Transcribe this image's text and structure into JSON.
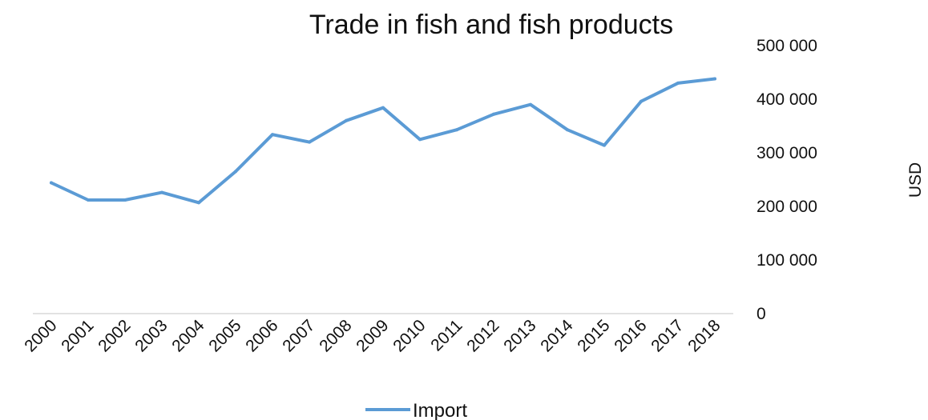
{
  "chart_data": {
    "type": "line",
    "title": "Trade in fish and fish products",
    "xlabel": "",
    "ylabel": "USD",
    "categories": [
      "2000",
      "2001",
      "2002",
      "2003",
      "2004",
      "2005",
      "2006",
      "2007",
      "2008",
      "2009",
      "2010",
      "2011",
      "2012",
      "2013",
      "2014",
      "2015",
      "2016",
      "2017",
      "2018"
    ],
    "series": [
      {
        "name": "Import",
        "color": "#5b9bd5",
        "values": [
          244000,
          212000,
          212000,
          226000,
          207000,
          265000,
          334000,
          320000,
          360000,
          384000,
          325000,
          343000,
          372000,
          390000,
          343000,
          314000,
          396000,
          430000,
          438000
        ]
      }
    ],
    "ylim": [
      0,
      500000
    ],
    "yticks": [
      "0",
      "100 000",
      "200 000",
      "300 000",
      "400 000",
      "500 000"
    ],
    "y_axis_side": "right",
    "grid": false,
    "legend_position": "bottom",
    "axis_color": "#d9d9d9"
  }
}
